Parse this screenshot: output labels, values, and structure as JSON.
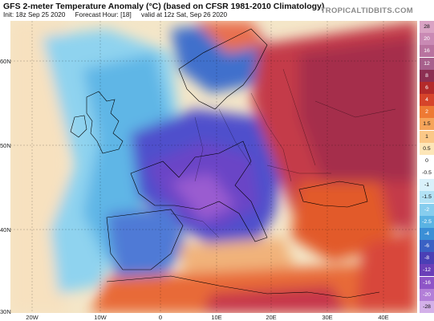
{
  "header": {
    "title": "GFS 2-meter Temperature Anomaly (°C) (based on CFSR 1981-2010 Climatology)",
    "init": "Init: 18z Sep 25 2020",
    "forecast_hour": "Forecast Hour: [18]",
    "valid": "valid at 12z Sat, Sep 26 2020",
    "brand": "TROPICALTIDBITS.COM"
  },
  "axes": {
    "lat_labels": [
      "60N",
      "50N",
      "40N",
      "30N"
    ],
    "lon_labels": [
      "20W",
      "10W",
      "0",
      "10E",
      "20E",
      "30E",
      "40E"
    ]
  },
  "colorbar": {
    "labels": [
      "28",
      "20",
      "16",
      "12",
      "8",
      "6",
      "4",
      "2",
      "1.5",
      "1",
      "0.5",
      "0",
      "-0.5",
      "-1",
      "-1.5",
      "-2",
      "-2.5",
      "-4",
      "-6",
      "-8",
      "-12",
      "-16",
      "-20",
      "-28"
    ],
    "colors": [
      "#d9a3c4",
      "#c98ab4",
      "#b8739f",
      "#a7608c",
      "#8c2f52",
      "#b32a2a",
      "#d6442a",
      "#ee7a34",
      "#f6a45a",
      "#fbc887",
      "#fde6b8",
      "#ffffff",
      "#ffffff",
      "#d9f1fb",
      "#b2e2f5",
      "#86cdee",
      "#5ab3e3",
      "#3b8fd6",
      "#3a61c4",
      "#4a3fb5",
      "#6a3fb8",
      "#8e55c7",
      "#b37fd8",
      "#d3b0e8"
    ]
  },
  "colors": {
    "ocean_warm": "#f7dcc0",
    "ocean_cold": "#9fd8ef",
    "deep_cold": "#5b56d0",
    "warm": "#c7384a",
    "hot": "#9e2a4a",
    "land_border": "#000000"
  }
}
